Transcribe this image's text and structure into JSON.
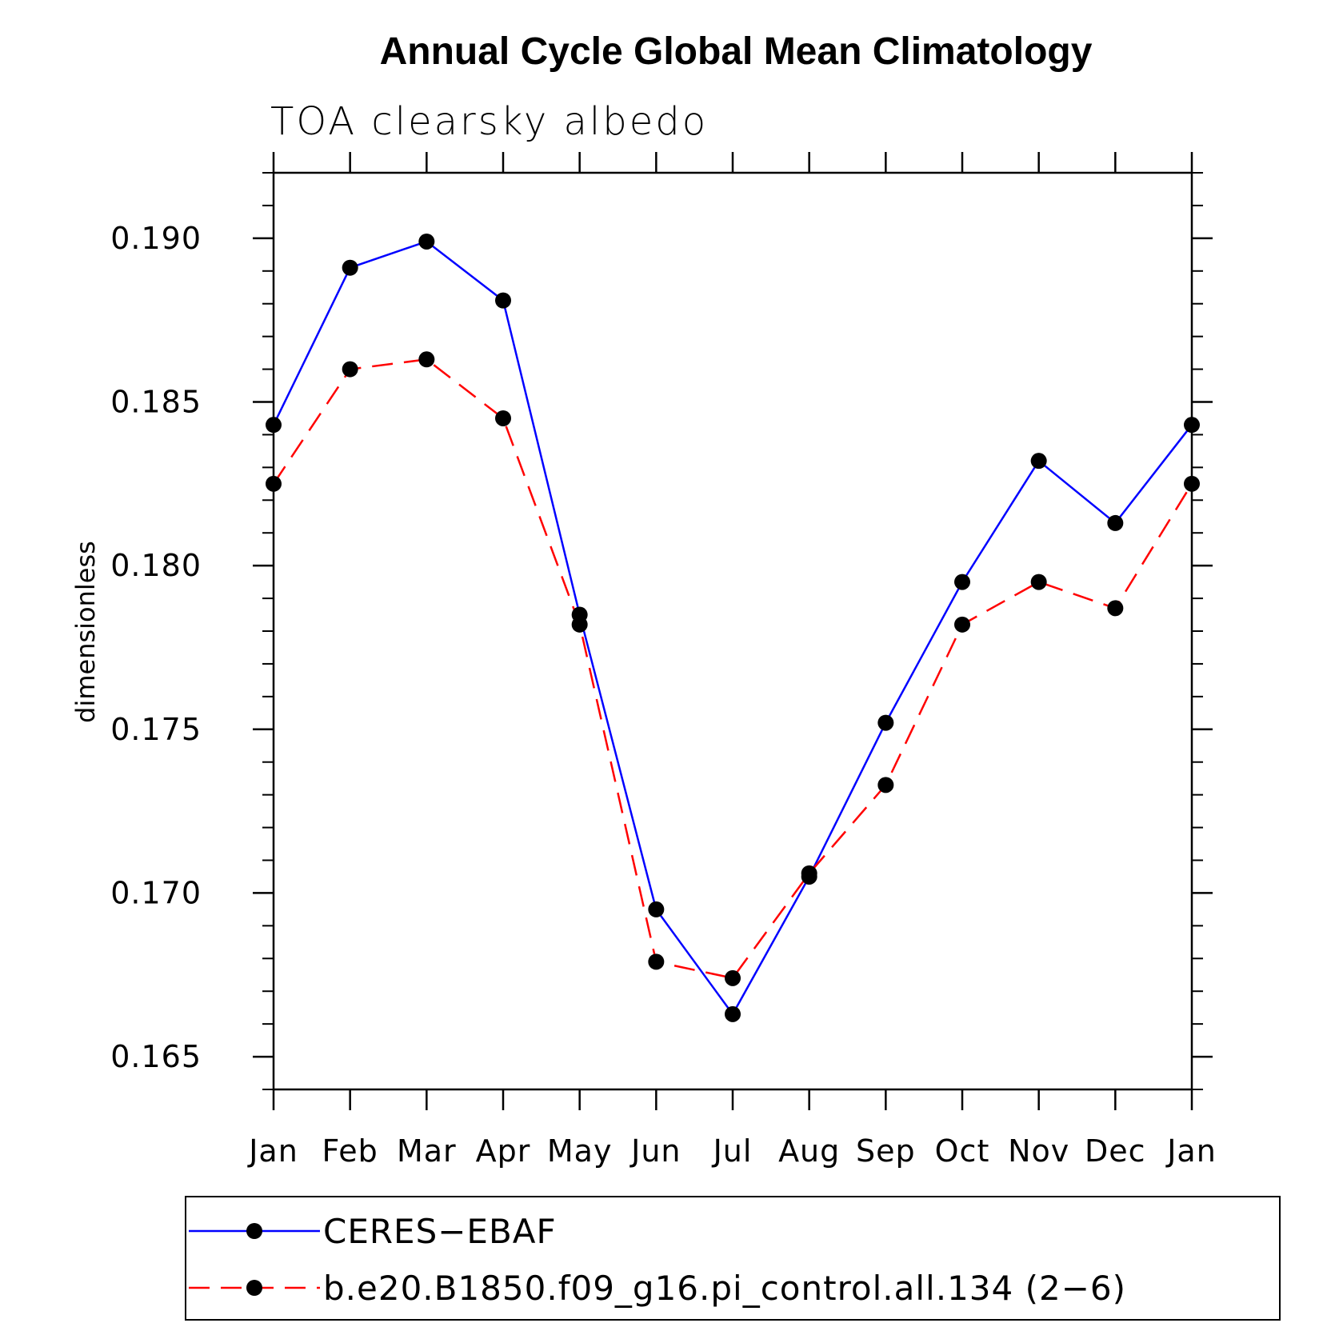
{
  "chart_data": {
    "type": "line",
    "title": "Annual Cycle Global Mean Climatology",
    "subtitle": "TOA clearsky albedo",
    "xlabel": "",
    "ylabel": "dimensionless",
    "categories": [
      "Jan",
      "Feb",
      "Mar",
      "Apr",
      "May",
      "Jun",
      "Jul",
      "Aug",
      "Sep",
      "Oct",
      "Nov",
      "Dec",
      "Jan"
    ],
    "ylim": [
      0.164,
      0.192
    ],
    "yticks": [
      "0.165",
      "0.170",
      "0.175",
      "0.180",
      "0.185",
      "0.190"
    ],
    "grid": false,
    "legend_position": "bottom",
    "series": [
      {
        "name": "CERES−EBAF",
        "color": "#0000ff",
        "line_style": "solid",
        "marker": "filled-circle",
        "values": [
          0.1843,
          0.1891,
          0.1899,
          0.1881,
          0.1785,
          0.1695,
          0.1663,
          0.1705,
          0.1752,
          0.1795,
          0.1832,
          0.1813,
          0.1843
        ]
      },
      {
        "name": "b.e20.B1850.f09_g16.pi_control.all.134 (2−6)",
        "color": "#ff0000",
        "line_style": "dashed",
        "marker": "filled-circle",
        "values": [
          0.1825,
          0.186,
          0.1863,
          0.1845,
          0.1782,
          0.1679,
          0.1674,
          0.1706,
          0.1733,
          0.1782,
          0.1795,
          0.1787,
          0.1825
        ]
      }
    ]
  }
}
